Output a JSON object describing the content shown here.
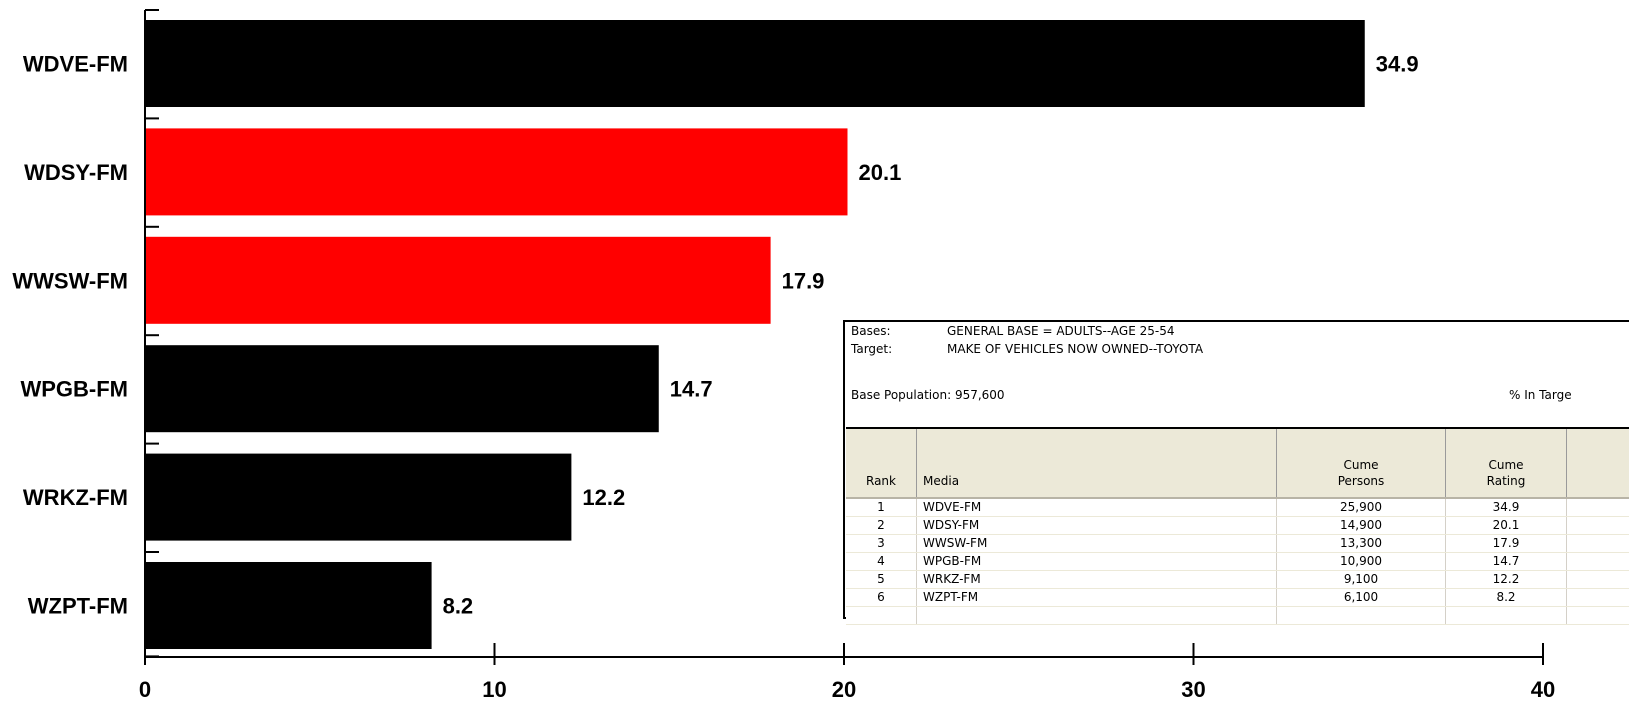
{
  "chart_data": {
    "type": "bar",
    "orientation": "horizontal",
    "categories": [
      "WDVE-FM",
      "WDSY-FM",
      "WWSW-FM",
      "WPGB-FM",
      "WRKZ-FM",
      "WZPT-FM"
    ],
    "values": [
      34.9,
      20.1,
      17.9,
      14.7,
      12.2,
      8.2
    ],
    "value_labels": [
      "34.9",
      "20.1",
      "17.9",
      "14.7",
      "12.2",
      "8.2"
    ],
    "bar_colors": [
      "#000000",
      "#ff0000",
      "#ff0000",
      "#000000",
      "#000000",
      "#000000"
    ],
    "xlim": [
      0,
      40
    ],
    "xticks": [
      0,
      10,
      20,
      30,
      40
    ],
    "xtick_labels": [
      "0",
      "10",
      "20",
      "30",
      "40"
    ],
    "title": "",
    "xlabel": "",
    "ylabel": "",
    "grid": false
  },
  "info_panel": {
    "bases_key": "Bases:",
    "bases_value": "GENERAL BASE = ADULTS--AGE 25-54",
    "target_key": "Target:",
    "target_value": "MAKE OF VEHICLES NOW OWNED--TOYOTA",
    "base_population": "Base Population: 957,600",
    "pct_label": "% In Targe",
    "table": {
      "columns": [
        {
          "line1": "",
          "line2": "Rank"
        },
        {
          "line1": "",
          "line2": "Media"
        },
        {
          "line1": "Cume",
          "line2": "Persons"
        },
        {
          "line1": "Cume",
          "line2": "Rating"
        },
        {
          "line1": "",
          "line2": ""
        }
      ],
      "rows": [
        {
          "rank": "1",
          "media": "WDVE-FM",
          "persons": "25,900",
          "rating": "34.9"
        },
        {
          "rank": "2",
          "media": "WDSY-FM",
          "persons": "14,900",
          "rating": "20.1"
        },
        {
          "rank": "3",
          "media": "WWSW-FM",
          "persons": "13,300",
          "rating": "17.9"
        },
        {
          "rank": "4",
          "media": "WPGB-FM",
          "persons": "10,900",
          "rating": "14.7"
        },
        {
          "rank": "5",
          "media": "WRKZ-FM",
          "persons": "9,100",
          "rating": "12.2"
        },
        {
          "rank": "6",
          "media": "WZPT-FM",
          "persons": "6,100",
          "rating": "8.2"
        }
      ]
    }
  }
}
